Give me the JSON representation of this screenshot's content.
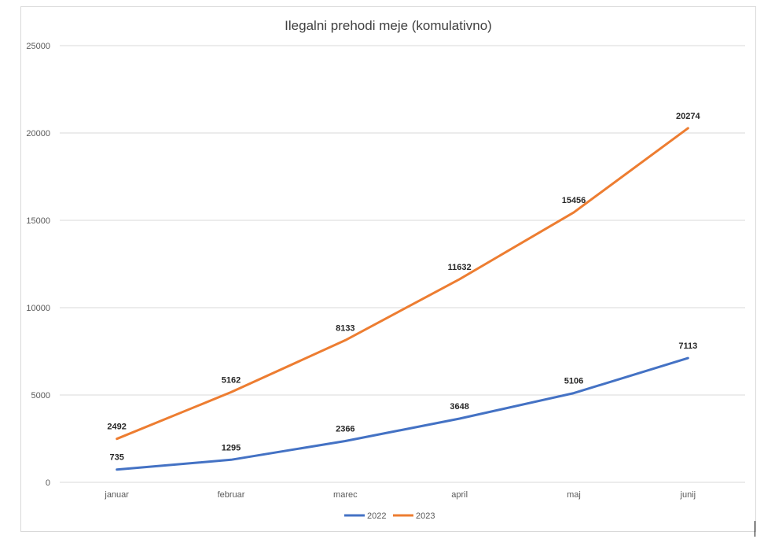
{
  "chart_data": {
    "type": "line",
    "title": "Ilegalni prehodi meje (komulativno)",
    "categories": [
      "januar",
      "februar",
      "marec",
      "april",
      "maj",
      "junij"
    ],
    "series": [
      {
        "name": "2022",
        "color": "#4472c4",
        "values": [
          735,
          1295,
          2366,
          3648,
          5106,
          7113
        ]
      },
      {
        "name": "2023",
        "color": "#ed7d31",
        "values": [
          2492,
          5162,
          8133,
          11632,
          15456,
          20274
        ]
      }
    ],
    "ylim": [
      0,
      25000
    ],
    "yticks": [
      0,
      5000,
      10000,
      15000,
      20000,
      25000
    ],
    "grid": true,
    "legend": "bottom",
    "data_labels": true
  }
}
